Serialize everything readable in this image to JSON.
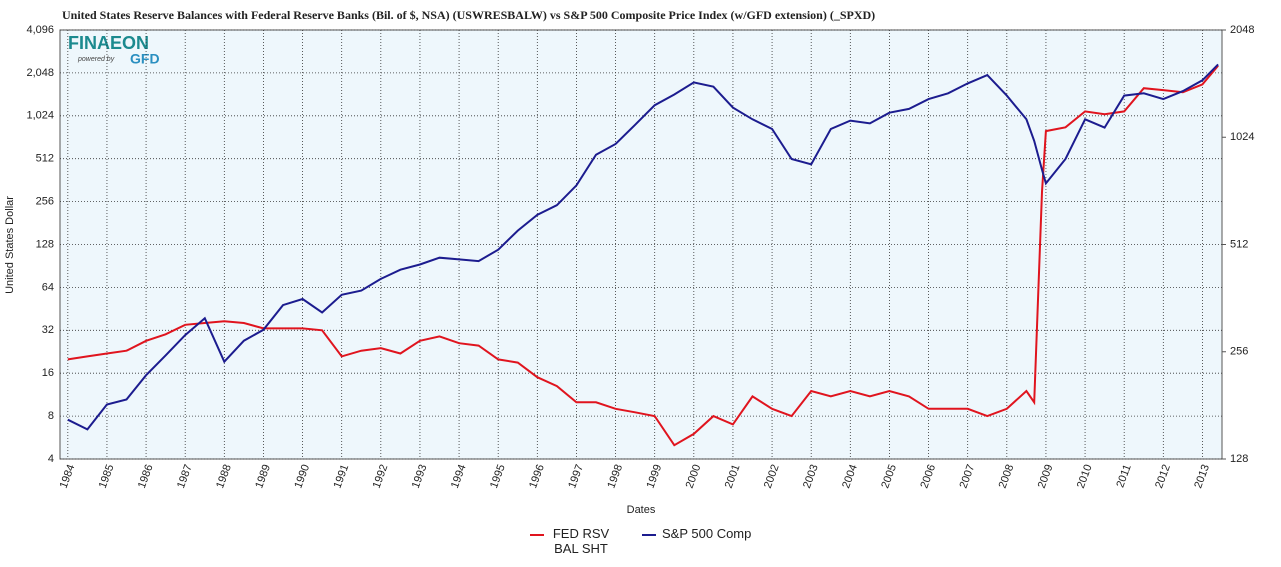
{
  "chart_data": {
    "type": "line",
    "title": "United States Reserve Balances with Federal Reserve Banks (Bil. of $, NSA) (USWRESBALW)  vs  S&P 500 Composite Price Index (w/GFD extension) (_SPXD)",
    "logo": {
      "brand": "FINAEON",
      "tagline": "powered by",
      "sub": "GFD"
    },
    "ylabel": "United States Dollar",
    "xlabel": "Dates",
    "log_y": true,
    "log_y2": true,
    "grid": true,
    "legend": "bottom",
    "x": [
      1984,
      1984.5,
      1985,
      1985.5,
      1986,
      1986.5,
      1987,
      1987.5,
      1988,
      1988.5,
      1989,
      1989.5,
      1990,
      1990.5,
      1991,
      1991.5,
      1992,
      1992.5,
      1993,
      1993.5,
      1994,
      1994.5,
      1995,
      1995.5,
      1996,
      1996.5,
      1997,
      1997.5,
      1998,
      1998.5,
      1999,
      1999.5,
      2000,
      2000.5,
      2001,
      2001.5,
      2002,
      2002.5,
      2003,
      2003.5,
      2004,
      2004.5,
      2005,
      2005.5,
      2006,
      2006.5,
      2007,
      2007.5,
      2008,
      2008.5,
      2008.7,
      2008.9,
      2009,
      2009.5,
      2010,
      2010.5,
      2011,
      2011.5,
      2012,
      2012.5,
      2013,
      2013.4
    ],
    "xlim": [
      1983.8,
      2013.5
    ],
    "xticks": [
      1984,
      1985,
      1986,
      1987,
      1988,
      1989,
      1990,
      1991,
      1992,
      1993,
      1994,
      1995,
      1996,
      1997,
      1998,
      1999,
      2000,
      2001,
      2002,
      2003,
      2004,
      2005,
      2006,
      2007,
      2008,
      2009,
      2010,
      2011,
      2012,
      2013
    ],
    "ylim": [
      4,
      4096
    ],
    "yticks": [
      4,
      8,
      16,
      32,
      64,
      128,
      256,
      512,
      {
        "value": 1024,
        "label": "1,024"
      },
      {
        "value": 2048,
        "label": "2,048"
      },
      {
        "value": 4096,
        "label": "4,096"
      }
    ],
    "y2lim": [
      128,
      2048
    ],
    "y2ticks": [
      128,
      256,
      512,
      1024,
      2048
    ],
    "series": [
      {
        "name": "FED RSV BAL SHT",
        "color": "#e0141e",
        "values": [
          20,
          21,
          22,
          23,
          27,
          30,
          35,
          36,
          37,
          36,
          33,
          33,
          33,
          32,
          21,
          23,
          24,
          22,
          27,
          29,
          26,
          25,
          20,
          19,
          15,
          13,
          10,
          10,
          9,
          8.5,
          8,
          5,
          6,
          8,
          7,
          11,
          9,
          8,
          12,
          11,
          12,
          11,
          12,
          11,
          9,
          9,
          9,
          8,
          9,
          12,
          10,
          300,
          800,
          850,
          1100,
          1050,
          1100,
          1600,
          1550,
          1500,
          1700,
          2300
        ]
      },
      {
        "name": "S&P 500 Comp",
        "color": "#1c1c8f",
        "axis": "y2",
        "values": [
          165,
          155,
          182,
          188,
          220,
          250,
          285,
          318,
          240,
          275,
          295,
          346,
          360,
          330,
          370,
          380,
          410,
          435,
          450,
          470,
          465,
          460,
          495,
          560,
          620,
          660,
          750,
          915,
          980,
          1110,
          1260,
          1350,
          1460,
          1420,
          1240,
          1150,
          1080,
          890,
          860,
          1080,
          1140,
          1120,
          1200,
          1230,
          1310,
          1360,
          1450,
          1530,
          1340,
          1150,
          1000,
          830,
          760,
          890,
          1150,
          1090,
          1340,
          1360,
          1310,
          1380,
          1480,
          1640
        ]
      }
    ]
  }
}
